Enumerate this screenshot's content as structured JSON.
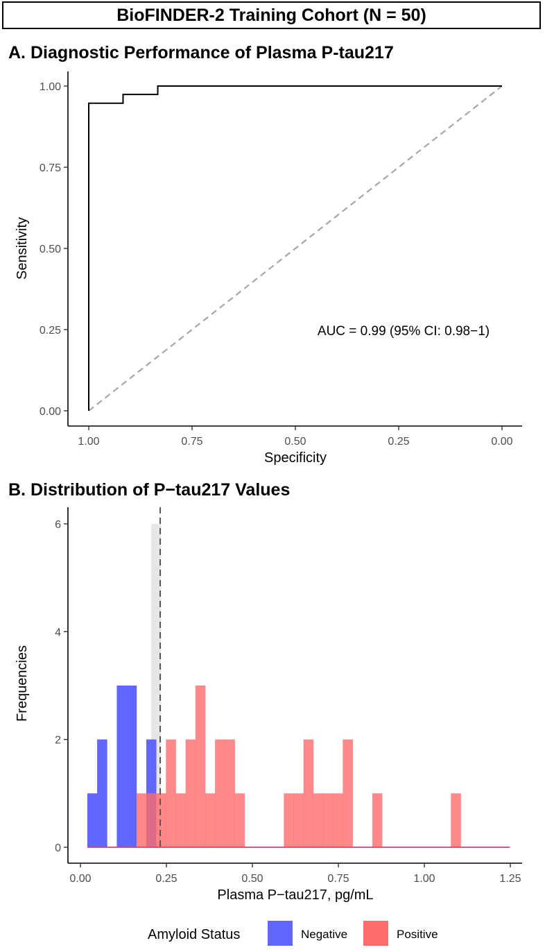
{
  "header": {
    "title": "BioFINDER-2 Training Cohort (N = 50)"
  },
  "chart_data": [
    {
      "type": "line",
      "panel_title": "A. Diagnostic Performance of Plasma P-tau217",
      "xlabel": "Specificity",
      "ylabel": "Sensitivity",
      "x_reversed": true,
      "xlim": [
        1.0,
        0.0
      ],
      "ylim": [
        0.0,
        1.0
      ],
      "x_ticks": [
        "1.00",
        "0.75",
        "0.50",
        "0.25",
        "0.00"
      ],
      "x_tick_values": [
        1.0,
        0.75,
        0.5,
        0.25,
        0.0
      ],
      "y_ticks": [
        "0.00",
        "0.25",
        "0.50",
        "0.75",
        "1.00"
      ],
      "y_tick_values": [
        0.0,
        0.25,
        0.5,
        0.75,
        1.0
      ],
      "roc_curve": {
        "specificity": [
          1.0,
          1.0,
          0.917,
          0.917,
          0.833,
          0.833,
          0.0
        ],
        "sensitivity": [
          0.0,
          0.947,
          0.947,
          0.974,
          0.974,
          1.0,
          1.0
        ]
      },
      "reference_line": {
        "from": [
          1.0,
          0.0
        ],
        "to": [
          0.0,
          1.0
        ],
        "style": "dashed"
      },
      "annotation": "AUC = 0.99 (95% CI: 0.98−1)",
      "grid": false
    },
    {
      "type": "bar",
      "panel_title": "B. Distribution of P−tau217 Values",
      "xlabel": "Plasma P−tau217, pg/mL",
      "ylabel": "Frequencies",
      "xlim": [
        -0.02,
        1.25
      ],
      "ylim": [
        -0.15,
        6.3
      ],
      "x_ticks": [
        "0.00",
        "0.25",
        "0.50",
        "0.75",
        "1.00",
        "1.25"
      ],
      "x_tick_values": [
        0.0,
        0.25,
        0.5,
        0.75,
        1.0,
        1.25
      ],
      "y_ticks": [
        "0",
        "2",
        "4",
        "6"
      ],
      "y_tick_values": [
        0,
        2,
        4,
        6
      ],
      "bin_width": 0.02857,
      "bins_start": 0.02,
      "series": [
        {
          "name": "Negative",
          "color": "#6166ff",
          "values": [
            1,
            2,
            0,
            3,
            3,
            0,
            2,
            0,
            0,
            0,
            0,
            0,
            0,
            0,
            0,
            0,
            0,
            0,
            0,
            0,
            0,
            0,
            0,
            0,
            0,
            0,
            0,
            0,
            0,
            0,
            0,
            0,
            0,
            0,
            0,
            0,
            0,
            0,
            0,
            0,
            0,
            0,
            0
          ]
        },
        {
          "name": "Positive",
          "color": "#ff6a6a",
          "values": [
            0,
            0,
            0,
            0,
            0,
            1,
            1,
            1,
            2,
            1,
            2,
            3,
            1,
            2,
            2,
            1,
            0,
            0,
            0,
            0,
            1,
            1,
            2,
            1,
            1,
            1,
            2,
            0,
            0,
            1,
            0,
            0,
            0,
            0,
            0,
            0,
            0,
            1,
            0,
            0,
            0,
            0,
            0
          ]
        }
      ],
      "gray_bin": {
        "x0": 0.2057,
        "x1": 0.2343,
        "value": 6,
        "color": "#e6e6e6"
      },
      "cutoff": {
        "x": 0.232,
        "style": "dashed"
      },
      "grid": false,
      "legend": {
        "title": "Amyloid Status",
        "placement": "bottom"
      }
    }
  ]
}
